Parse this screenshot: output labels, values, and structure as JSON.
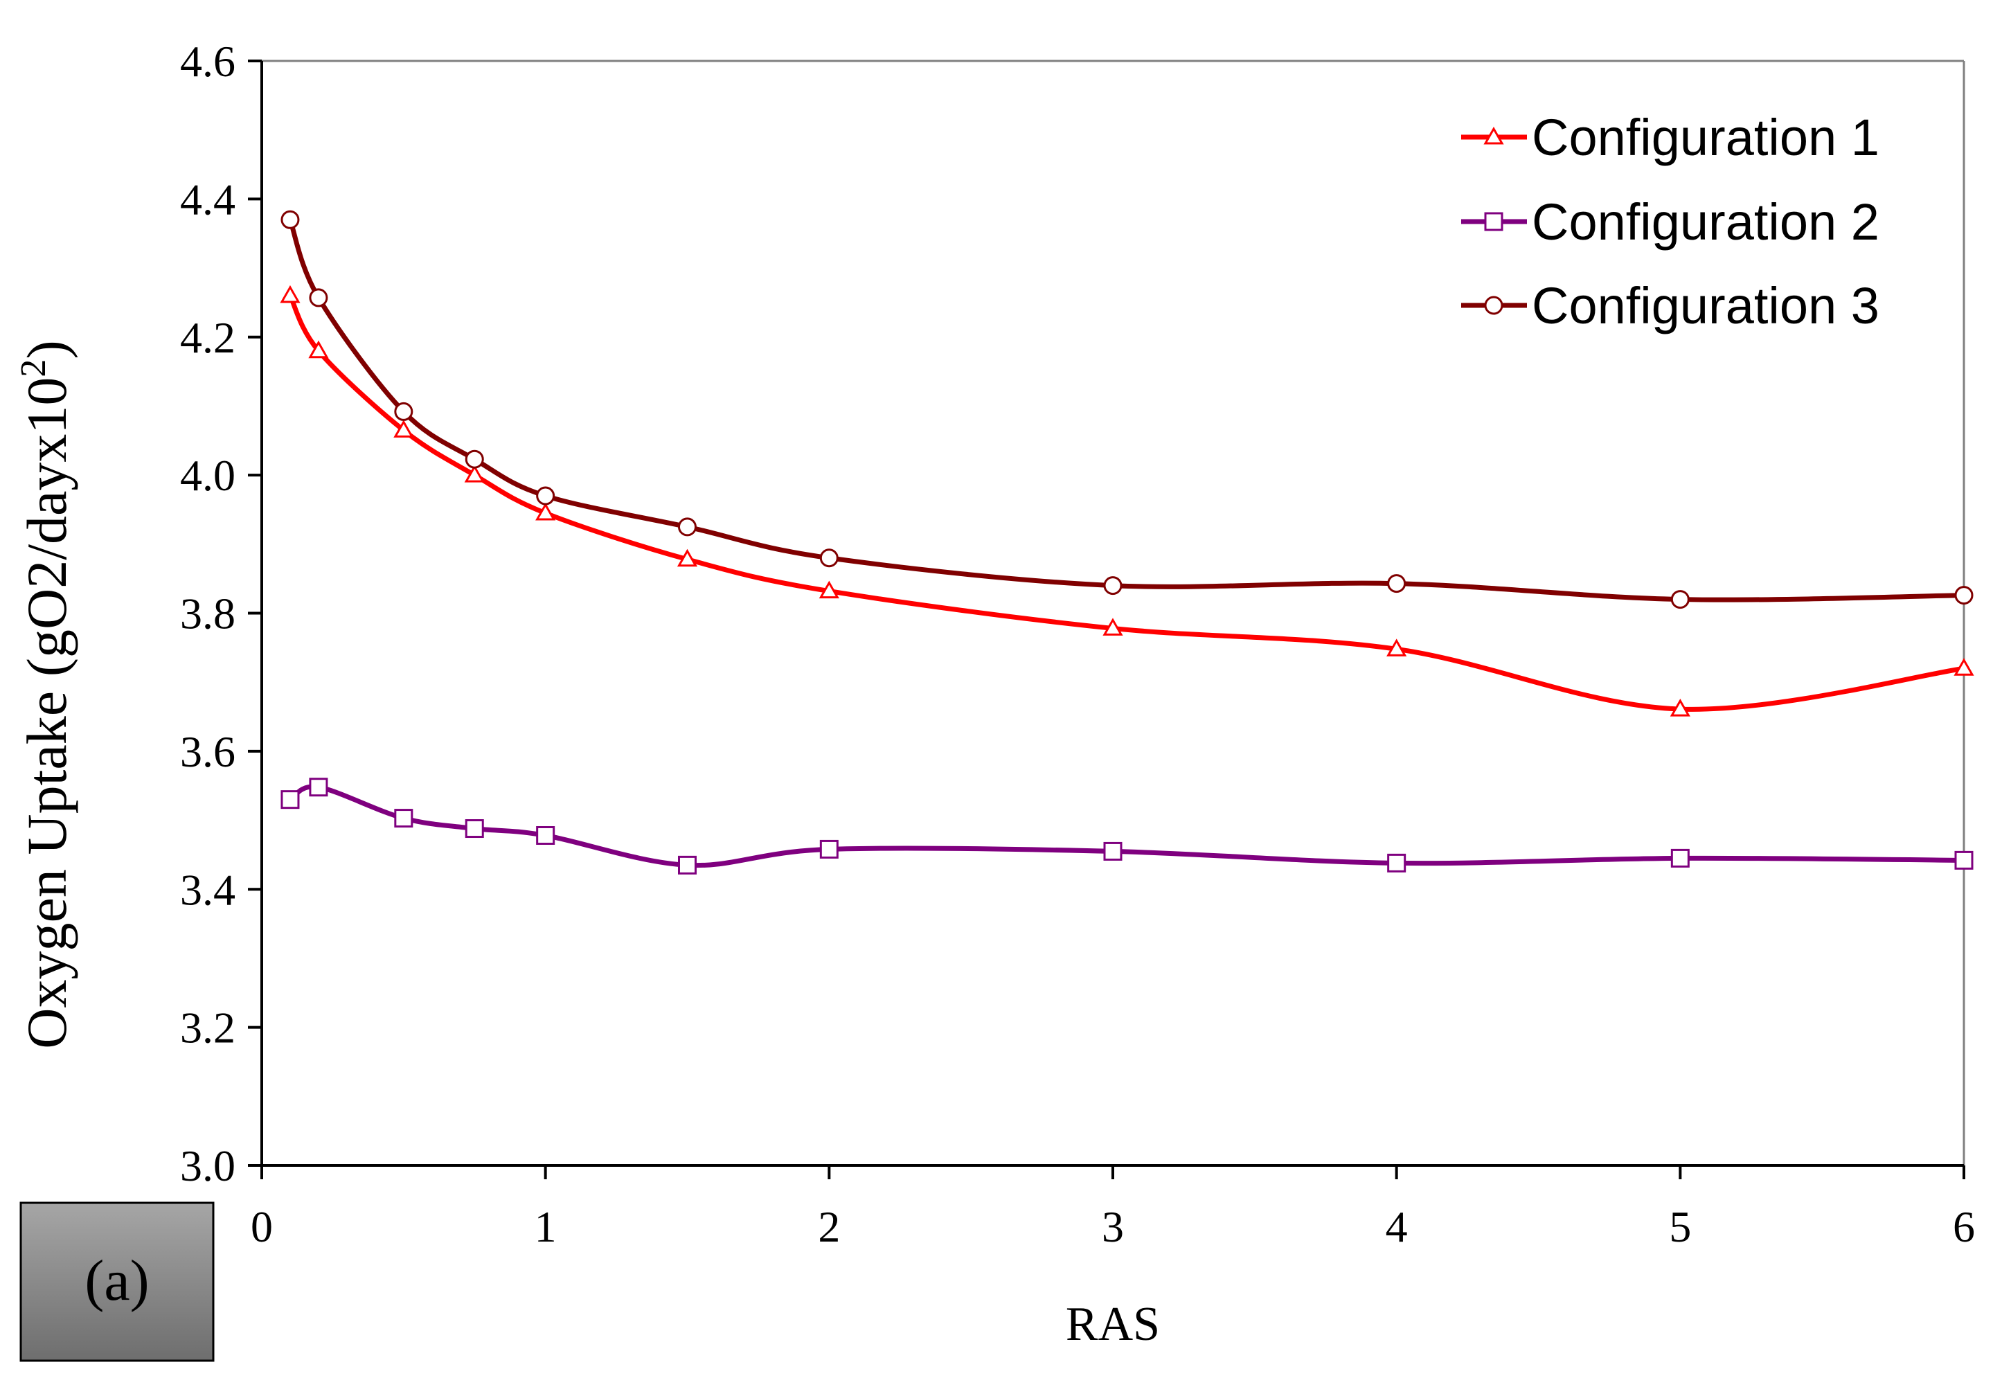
{
  "chart_data": {
    "type": "line",
    "title": "",
    "panel_label": "(a)",
    "xlabel": "RAS",
    "ylabel_prefix": "Oxygen Uptake (gO2/dayx10",
    "ylabel_sup": "2",
    "ylabel_suffix": ")",
    "xlim": [
      0,
      6
    ],
    "ylim": [
      3.0,
      4.6
    ],
    "x_ticks": [
      0,
      1,
      2,
      3,
      4,
      5,
      6
    ],
    "y_ticks": [
      "3.0",
      "3.2",
      "3.4",
      "3.6",
      "3.8",
      "4.0",
      "4.2",
      "4.4",
      "4.6"
    ],
    "grid": false,
    "legend_position": "top-right",
    "x": [
      0.1,
      0.2,
      0.5,
      0.75,
      1,
      1.5,
      2,
      3,
      4,
      5,
      6
    ],
    "series": [
      {
        "name": "Configuration 1",
        "color": "#ff0000",
        "marker": "triangle",
        "values": [
          4.26,
          4.18,
          4.065,
          4.0,
          3.945,
          3.878,
          3.832,
          3.778,
          3.748,
          3.661,
          3.72
        ]
      },
      {
        "name": "Configuration 2",
        "color": "#7f007f",
        "marker": "square",
        "values": [
          3.53,
          3.548,
          3.503,
          3.488,
          3.478,
          3.435,
          3.458,
          3.455,
          3.438,
          3.445,
          3.442
        ]
      },
      {
        "name": "Configuration 3",
        "color": "#800000",
        "marker": "circle",
        "values": [
          4.37,
          4.257,
          4.092,
          4.023,
          3.97,
          3.925,
          3.88,
          3.84,
          3.843,
          3.82,
          3.826
        ]
      }
    ]
  }
}
